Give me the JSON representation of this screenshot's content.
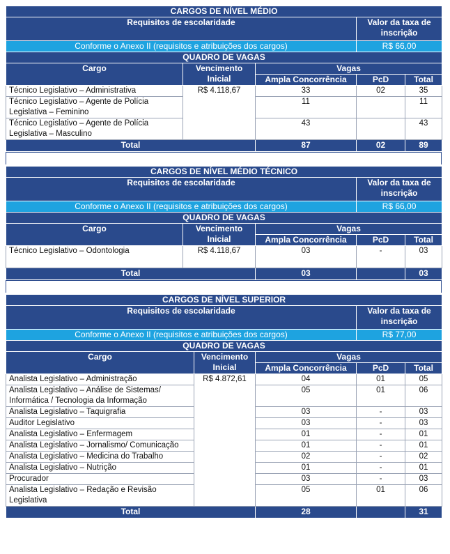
{
  "sections": [
    {
      "title": "CARGOS DE NÍVEL MÉDIO",
      "req_label": "Requisitos de escolaridade",
      "fee_label": "Valor da taxa de inscrição",
      "req_value": "Conforme o Anexo II (requisitos e atribuições dos cargos)",
      "fee_value": "R$ 66,00",
      "quadro": "QUADRO DE VAGAS",
      "headers": {
        "cargo": "Cargo",
        "venc": "Vencimento Inicial",
        "vagas": "Vagas",
        "ampla": "Ampla Concorrência",
        "pcd": "PcD",
        "total": "Total"
      },
      "vencimento": "R$ 4.118,67",
      "rows": [
        {
          "cargo": "Técnico Legislativo – Administrativa",
          "ampla": "33",
          "pcd": "02",
          "total": "35"
        },
        {
          "cargo": "Técnico Legislativo – Agente de Polícia Legislativa – Feminino",
          "ampla": "11",
          "pcd": "",
          "total": "11"
        },
        {
          "cargo": "Técnico Legislativo – Agente de Polícia Legislativa – Masculino",
          "ampla": "43",
          "pcd": "",
          "total": "43"
        }
      ],
      "totals": {
        "label": "Total",
        "ampla": "87",
        "pcd": "02",
        "total": "89"
      }
    },
    {
      "title": "CARGOS DE NÍVEL MÉDIO TÉCNICO",
      "req_label": "Requisitos de escolaridade",
      "fee_label": "Valor da taxa de inscrição",
      "req_value": "Conforme o Anexo II (requisitos e atribuições dos cargos)",
      "fee_value": "R$ 66,00",
      "quadro": "QUADRO DE VAGAS",
      "headers": {
        "cargo": "Cargo",
        "venc": "Vencimento Inicial",
        "vagas": "Vagas",
        "ampla": "Ampla Concorrência",
        "pcd": "PcD",
        "total": "Total"
      },
      "vencimento": "R$ 4.118,67",
      "rows": [
        {
          "cargo": "Técnico Legislativo – Odontologia",
          "ampla": "03",
          "pcd": "-",
          "total": "03",
          "tall": true
        }
      ],
      "totals": {
        "label": "Total",
        "ampla": "03",
        "pcd": "",
        "total": "03"
      }
    },
    {
      "title": "CARGOS DE NÍVEL SUPERIOR",
      "req_label": "Requisitos de escolaridade",
      "fee_label": "Valor da taxa de inscrição",
      "req_value": "Conforme o Anexo II (requisitos e atribuições dos cargos)",
      "fee_value": "R$ 77,00",
      "quadro": "QUADRO DE VAGAS",
      "headers": {
        "cargo": "Cargo",
        "venc": "Vencimento Inicial",
        "vagas": "Vagas",
        "ampla": "Ampla Concorrência",
        "pcd": "PcD",
        "total": "Total"
      },
      "vencimento": "R$ 4.872,61",
      "rows": [
        {
          "cargo": "Analista Legislativo – Administração",
          "ampla": "04",
          "pcd": "01",
          "total": "05"
        },
        {
          "cargo": "Analista Legislativo – Análise de Sistemas/ Informática / Tecnologia da Informação",
          "ampla": "05",
          "pcd": "01",
          "total": "06"
        },
        {
          "cargo": "Analista Legislativo – Taquigrafia",
          "ampla": "03",
          "pcd": "-",
          "total": "03"
        },
        {
          "cargo": "Auditor Legislativo",
          "ampla": "03",
          "pcd": "-",
          "total": "03"
        },
        {
          "cargo": "Analista Legislativo – Enfermagem",
          "ampla": "01",
          "pcd": "-",
          "total": "01"
        },
        {
          "cargo": "Analista Legislativo – Jornalismo/ Comunicação",
          "ampla": "01",
          "pcd": "-",
          "total": "01"
        },
        {
          "cargo": "Analista Legislativo – Medicina do Trabalho",
          "ampla": "02",
          "pcd": "-",
          "total": "02"
        },
        {
          "cargo": "Analista Legislativo – Nutrição",
          "ampla": "01",
          "pcd": "-",
          "total": "01"
        },
        {
          "cargo": "Procurador",
          "ampla": "03",
          "pcd": "-",
          "total": "03"
        },
        {
          "cargo": "Analista Legislativo – Redação e Revisão Legislativa",
          "ampla": "05",
          "pcd": "01",
          "total": "06"
        }
      ],
      "totals": {
        "label": "Total",
        "ampla": "28",
        "pcd": "",
        "total": "31"
      }
    }
  ]
}
